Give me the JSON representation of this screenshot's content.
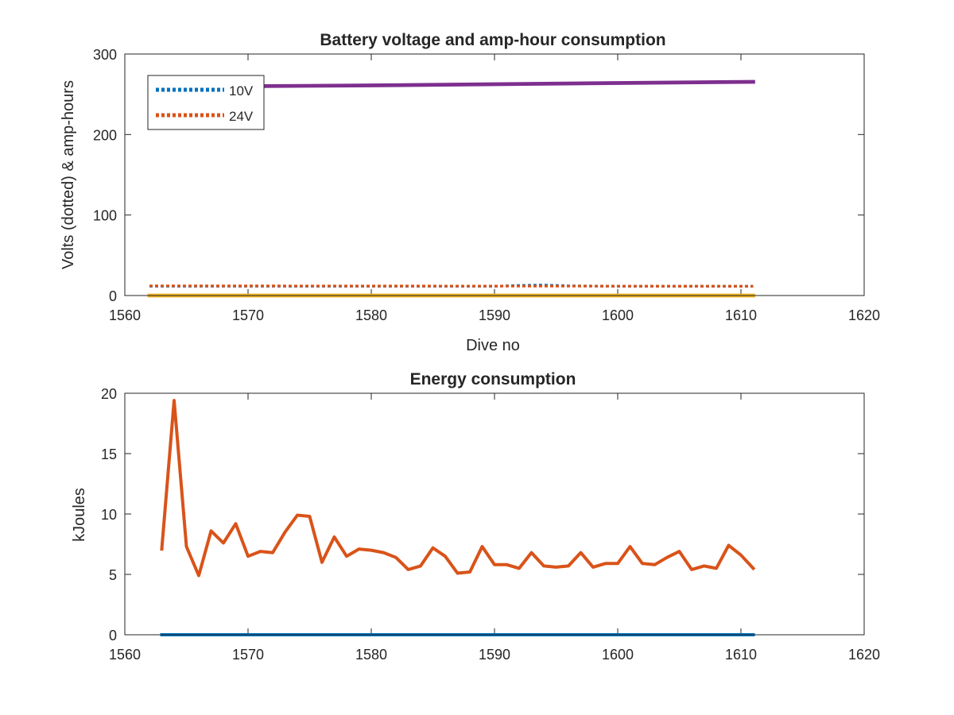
{
  "chart_data": [
    {
      "type": "line",
      "title": "Battery voltage and amp-hour consumption",
      "xlabel": "Dive no",
      "ylabel": "Volts (dotted) & amp-hours",
      "xlim": [
        1560,
        1620
      ],
      "ylim": [
        0,
        300
      ],
      "xticks": [
        1560,
        1570,
        1580,
        1590,
        1600,
        1610,
        1620
      ],
      "yticks": [
        0,
        100,
        200,
        300
      ],
      "legend_position": "top-left",
      "series": [
        {
          "name": "10V",
          "style": "dotted",
          "color": "#0072bd",
          "in_legend": true,
          "x": [
            1562,
            1570,
            1580,
            1590,
            1592,
            1594,
            1596,
            1600,
            1611
          ],
          "y": [
            11.5,
            11.5,
            11.5,
            11.5,
            12.5,
            13,
            12,
            11.5,
            11.5
          ]
        },
        {
          "name": "24V",
          "style": "dotted",
          "color": "#d95319",
          "in_legend": true,
          "x": [
            1562,
            1611
          ],
          "y": [
            12,
            11.5
          ]
        },
        {
          "style": "solid",
          "color": "#edb120",
          "in_legend": false,
          "x": [
            1562,
            1611
          ],
          "y": [
            0,
            0
          ]
        },
        {
          "style": "solid",
          "color": "#7e2f8e",
          "in_legend": false,
          "x": [
            1562,
            1570,
            1580,
            1590,
            1600,
            1611
          ],
          "y": [
            259,
            260,
            261,
            262.5,
            264,
            265.5
          ]
        }
      ]
    },
    {
      "type": "line",
      "title": "Energy consumption",
      "xlabel": "",
      "ylabel": "kJoules",
      "xlim": [
        1560,
        1620
      ],
      "ylim": [
        0,
        20
      ],
      "xticks": [
        1560,
        1570,
        1580,
        1590,
        1600,
        1610,
        1620
      ],
      "yticks": [
        0,
        5,
        10,
        15,
        20
      ],
      "series": [
        {
          "color": "#0072bd",
          "x": [
            1563,
            1611
          ],
          "y": [
            0,
            0
          ]
        },
        {
          "color": "#d95319",
          "x": [
            1563,
            1564,
            1565,
            1566,
            1567,
            1568,
            1569,
            1570,
            1571,
            1572,
            1573,
            1574,
            1575,
            1576,
            1577,
            1578,
            1579,
            1580,
            1581,
            1582,
            1583,
            1584,
            1585,
            1586,
            1587,
            1588,
            1589,
            1590,
            1591,
            1592,
            1593,
            1594,
            1595,
            1596,
            1597,
            1598,
            1599,
            1600,
            1601,
            1602,
            1603,
            1604,
            1605,
            1606,
            1607,
            1608,
            1609,
            1610,
            1611
          ],
          "y": [
            7.1,
            19.4,
            7.3,
            4.9,
            8.6,
            7.6,
            9.2,
            6.5,
            6.9,
            6.8,
            8.5,
            9.9,
            9.8,
            6.0,
            8.1,
            6.5,
            7.1,
            7.0,
            6.8,
            6.4,
            5.4,
            5.7,
            7.2,
            6.5,
            5.1,
            5.2,
            7.3,
            5.8,
            5.8,
            5.5,
            6.8,
            5.7,
            5.6,
            5.7,
            6.8,
            5.6,
            5.9,
            5.9,
            7.3,
            5.9,
            5.8,
            6.4,
            6.9,
            5.4,
            5.7,
            5.5,
            7.4,
            6.6,
            5.5
          ]
        }
      ]
    }
  ]
}
